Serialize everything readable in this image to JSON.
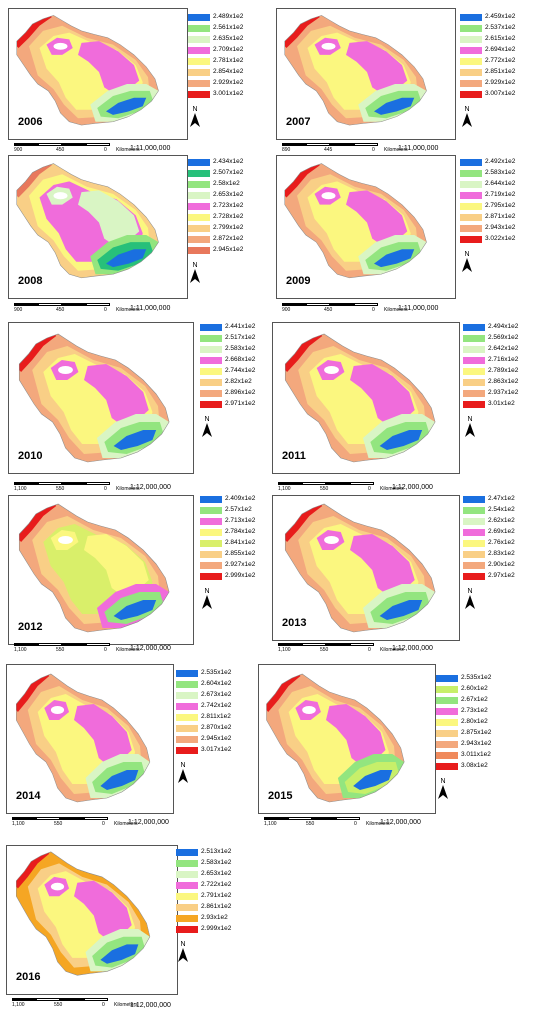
{
  "palette": [
    "#1a6fe0",
    "#93e57f",
    "#d9f5c4",
    "#f06cdb",
    "#fbf77f",
    "#f9cf86",
    "#f3a87d",
    "#e81c1c"
  ],
  "north_label": "N",
  "scale_unit": "Kilometers",
  "panels": [
    {
      "year": "2006",
      "legend": [
        "2.489x1e2",
        "2.561x1e2",
        "2.635x1e2",
        "2.709x1e2",
        "2.781x1e2",
        "2.854x1e2",
        "2.929x1e2",
        "3.001x1e2"
      ],
      "scale_nums": [
        "900",
        "450",
        "0"
      ],
      "ratio": "1:11,000,000"
    },
    {
      "year": "2007",
      "legend": [
        "2.459x1e2",
        "2.537x1e2",
        "2.615x1e2",
        "2.694x1e2",
        "2.772x1e2",
        "2.851x1e2",
        "2.929x1e2",
        "3.007x1e2"
      ],
      "scale_nums": [
        "890",
        "445",
        "0"
      ],
      "ratio": "1:11,000,000"
    },
    {
      "year": "2008",
      "legend": [
        "2.434x1e2",
        "2.507x1e2",
        "2.58x1e2",
        "2.653x1e2",
        "2.723x1e2",
        "2.728x1e2",
        "2.799x1e2",
        "2.872x1e2",
        "2.945x1e2"
      ],
      "legend_colors": [
        "#1a6fe0",
        "#27c07a",
        "#93e57f",
        "#d9f5c4",
        "#f06cdb",
        "#fbf77f",
        "#f9cf86",
        "#f3a87d",
        "#e8785c"
      ],
      "scale_nums": [
        "900",
        "450",
        "0"
      ],
      "ratio": "1:11,000,000"
    },
    {
      "year": "2009",
      "legend": [
        "2.492x1e2",
        "2.583x1e2",
        "2.644x1e2",
        "2.719x1e2",
        "2.795x1e2",
        "2.871x1e2",
        "2.943x1e2",
        "3.022x1e2"
      ],
      "scale_nums": [
        "900",
        "450",
        "0"
      ],
      "ratio": "1:11,000,000"
    },
    {
      "year": "2010",
      "legend": [
        "2.441x1e2",
        "2.517x1e2",
        "2.583x1e2",
        "2.668x1e2",
        "2.744x1e2",
        "2.82x1e2",
        "2.896x1e2",
        "2.971x1e2"
      ],
      "scale_nums": [
        "1,100",
        "550",
        "0"
      ],
      "ratio": "1:12,000,000"
    },
    {
      "year": "2011",
      "legend": [
        "2.494x1e2",
        "2.569x1e2",
        "2.642x1e2",
        "2.716x1e2",
        "2.789x1e2",
        "2.863x1e2",
        "2.937x1e2",
        "3.01x1e2"
      ],
      "scale_nums": [
        "1,100",
        "550",
        "0"
      ],
      "ratio": "1:12,000,000"
    },
    {
      "year": "2012",
      "legend": [
        "2.409x1e2",
        "2.57x1e2",
        "2.713x1e2",
        "2.784x1e2",
        "2.841x1e2",
        "2.855x1e2",
        "2.927x1e2",
        "2.999x1e2"
      ],
      "legend_colors": [
        "#1a6fe0",
        "#93e57f",
        "#f06cdb",
        "#fbf77f",
        "#d9ef6a",
        "#f9cf86",
        "#f3a87d",
        "#e81c1c"
      ],
      "scale_nums": [
        "1,100",
        "550",
        "0"
      ],
      "ratio": "1:12,000,000"
    },
    {
      "year": "2013",
      "legend": [
        "2.47x1e2",
        "2.54x1e2",
        "2.62x1e2",
        "2.69x1e2",
        "2.76x1e2",
        "2.83x1e2",
        "2.90x1e2",
        "2.97x1e2"
      ],
      "scale_nums": [
        "1,100",
        "550",
        "0"
      ],
      "ratio": "1:12,000,000"
    },
    {
      "year": "2014",
      "legend": [
        "2.535x1e2",
        "2.604x1e2",
        "2.673x1e2",
        "2.742x1e2",
        "2.811x1e2",
        "2.870x1e2",
        "2.945x1e2",
        "3.017x1e2"
      ],
      "scale_nums": [
        "1,100",
        "550",
        "0"
      ],
      "ratio": "1:12,000,000"
    },
    {
      "year": "2015",
      "legend": [
        "2.535x1e2",
        "2.60x1e2",
        "2.67x1e2",
        "2.73x1e2",
        "2.80x1e2",
        "2.875x1e2",
        "2.943x1e2",
        "3.011x1e2",
        "3.08x1e2"
      ],
      "legend_colors": [
        "#1a6fe0",
        "#c7ef6a",
        "#93e57f",
        "#f06cdb",
        "#fbf77f",
        "#f9cf86",
        "#f3a87d",
        "#f08a5c",
        "#e81c1c"
      ],
      "scale_nums": [
        "1,100",
        "550",
        "0"
      ],
      "ratio": "1:12,000,000"
    },
    {
      "year": "2016",
      "legend": [
        "2.513x1e2",
        "2.583x1e2",
        "2.653x1e2",
        "2.722x1e2",
        "2.791x1e2",
        "2.861x1e2",
        "2.93x1e2",
        "2.999x1e2"
      ],
      "legend_colors": [
        "#1a6fe0",
        "#93e57f",
        "#d9f5c4",
        "#f06cdb",
        "#fbf77f",
        "#f9cf86",
        "#f5a623",
        "#e81c1c"
      ],
      "scale_nums": [
        "1,100",
        "550",
        "0"
      ],
      "ratio": "1:12,000,000"
    }
  ]
}
